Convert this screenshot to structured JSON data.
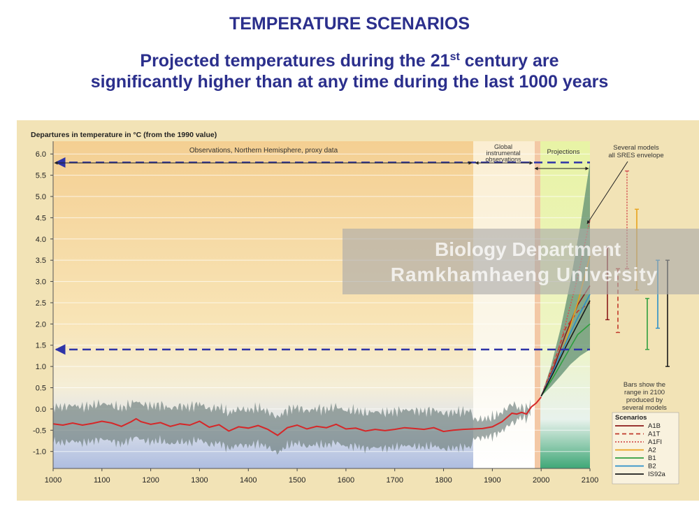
{
  "slide": {
    "title": "TEMPERATURE SCENARIOS",
    "subtitle_line1_before": "Projected temperatures during the 21",
    "subtitle_line1_sup": "st",
    "subtitle_line1_after": " century are",
    "subtitle_line2": "significantly higher than at any time during the last 1000 years"
  },
  "watermark": {
    "line1": "Biology Department",
    "line2": "Ramkhamhaeng University"
  },
  "chart_data": {
    "type": "line",
    "ylabel": "Departures in temperature in °C (from the 1990 value)",
    "xlim": [
      1000,
      2100
    ],
    "ylim": [
      -1.4,
      6.3
    ],
    "x_ticks": [
      1000,
      1100,
      1200,
      1300,
      1400,
      1500,
      1600,
      1700,
      1800,
      1900,
      2000,
      2100
    ],
    "y_ticks": [
      -1.0,
      -0.5,
      0.0,
      0.5,
      1.0,
      1.5,
      2.0,
      2.5,
      3.0,
      3.5,
      4.0,
      4.5,
      5.0,
      5.5,
      6.0
    ],
    "y_tick_labels": [
      "-1.0",
      "-0.5",
      "0.0",
      "0.5",
      "1.0",
      "1.5",
      "2.0",
      "2.5",
      "3.0",
      "3.5",
      "4.0",
      "4.5",
      "5.0",
      "5.5",
      "6.0"
    ],
    "periods": [
      {
        "label": "Observations, Northern Hemisphere, proxy data",
        "start": 1000,
        "end": 1860
      },
      {
        "label_lines": [
          "Global",
          "instrumental",
          "observations"
        ],
        "start": 1860,
        "end": 2000
      },
      {
        "label": "Projections",
        "start": 2000,
        "end": 2100
      }
    ],
    "envelope_label_lines": [
      "Several models",
      "all SRES envelope"
    ],
    "bars_note_lines": [
      "Bars show the",
      "range in 2100",
      "produced by",
      "several models"
    ],
    "legend_title": "Scenarios",
    "reference_lines": [
      {
        "y": 5.8,
        "color": "#2e34a8"
      },
      {
        "y": 1.4,
        "color": "#2e34a8"
      }
    ],
    "observed": {
      "color": "#d62728",
      "x": [
        1000,
        1020,
        1040,
        1060,
        1080,
        1100,
        1120,
        1140,
        1160,
        1170,
        1180,
        1200,
        1220,
        1240,
        1260,
        1280,
        1300,
        1320,
        1340,
        1360,
        1380,
        1400,
        1420,
        1440,
        1460,
        1480,
        1500,
        1520,
        1540,
        1560,
        1580,
        1600,
        1620,
        1640,
        1660,
        1680,
        1700,
        1720,
        1740,
        1760,
        1780,
        1800,
        1820,
        1840,
        1860,
        1880,
        1900,
        1920,
        1940,
        1950,
        1960,
        1970,
        1980,
        1990,
        2000
      ],
      "y": [
        -0.35,
        -0.38,
        -0.33,
        -0.38,
        -0.34,
        -0.29,
        -0.33,
        -0.41,
        -0.3,
        -0.23,
        -0.3,
        -0.36,
        -0.32,
        -0.41,
        -0.35,
        -0.38,
        -0.29,
        -0.43,
        -0.37,
        -0.52,
        -0.42,
        -0.45,
        -0.39,
        -0.48,
        -0.62,
        -0.44,
        -0.38,
        -0.47,
        -0.41,
        -0.44,
        -0.36,
        -0.47,
        -0.45,
        -0.52,
        -0.48,
        -0.51,
        -0.48,
        -0.44,
        -0.46,
        -0.48,
        -0.44,
        -0.53,
        -0.5,
        -0.48,
        -0.47,
        -0.46,
        -0.42,
        -0.3,
        -0.1,
        -0.12,
        -0.08,
        -0.12,
        0.05,
        0.14,
        0.28
      ]
    },
    "envelope": {
      "x": [
        2000,
        2020,
        2040,
        2060,
        2080,
        2100
      ],
      "low": [
        0.3,
        0.52,
        0.78,
        1.05,
        1.25,
        1.4
      ],
      "high": [
        0.3,
        1.0,
        1.9,
        3.0,
        4.3,
        5.8
      ]
    },
    "series": [
      {
        "name": "A1B",
        "color": "#8b1a1a",
        "dash": "",
        "x": [
          2000,
          2025,
          2050,
          2075,
          2100
        ],
        "y": [
          0.3,
          0.95,
          1.75,
          2.45,
          2.9
        ],
        "range_2100": [
          2.1,
          3.8
        ]
      },
      {
        "name": "A1T",
        "color": "#c0392b",
        "dash": "6,4",
        "x": [
          2000,
          2025,
          2050,
          2075,
          2100
        ],
        "y": [
          0.3,
          1.05,
          1.9,
          2.3,
          2.5
        ],
        "range_2100": [
          1.8,
          3.3
        ]
      },
      {
        "name": "A1FI",
        "color": "#d35454",
        "dash": "2,2",
        "x": [
          2000,
          2025,
          2050,
          2075,
          2100
        ],
        "y": [
          0.3,
          1.0,
          2.0,
          3.1,
          4.45
        ],
        "range_2100": [
          3.3,
          5.6
        ]
      },
      {
        "name": "A2",
        "color": "#e8a21c",
        "dash": "",
        "x": [
          2000,
          2025,
          2050,
          2075,
          2100
        ],
        "y": [
          0.3,
          0.85,
          1.6,
          2.5,
          3.6
        ],
        "range_2100": [
          2.8,
          4.7
        ]
      },
      {
        "name": "B1",
        "color": "#2e9e3e",
        "dash": "",
        "x": [
          2000,
          2025,
          2050,
          2075,
          2100
        ],
        "y": [
          0.3,
          0.75,
          1.25,
          1.75,
          2.0
        ],
        "range_2100": [
          1.4,
          2.6
        ]
      },
      {
        "name": "B2",
        "color": "#2b8fc9",
        "dash": "",
        "x": [
          2000,
          2025,
          2050,
          2075,
          2100
        ],
        "y": [
          0.3,
          0.9,
          1.55,
          2.15,
          2.7
        ],
        "range_2100": [
          1.9,
          3.5
        ]
      },
      {
        "name": "IS92a",
        "color": "#1a1a1a",
        "dash": "",
        "x": [
          2000,
          2025,
          2050,
          2075,
          2100
        ],
        "y": [
          0.3,
          0.85,
          1.45,
          2.0,
          2.55
        ],
        "range_2100": [
          1.0,
          3.5
        ]
      }
    ]
  }
}
